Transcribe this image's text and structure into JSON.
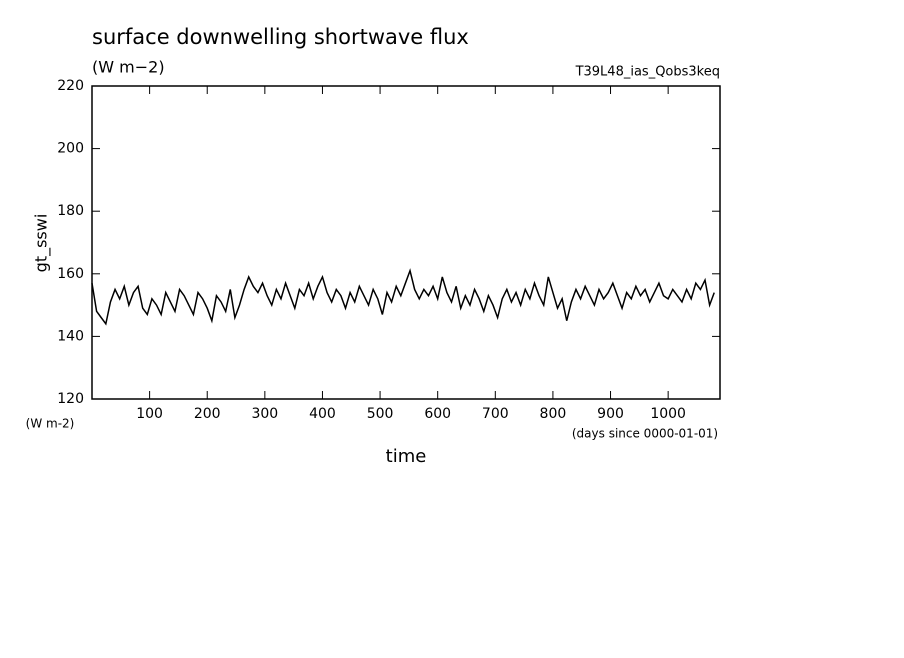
{
  "chart_data": {
    "type": "line",
    "title": "surface downwelling shortwave flux",
    "subtitle": "(W m−2)",
    "run_label": "T39L48_ias_Qobs3keq",
    "y_label": "gt_sswi",
    "y_unit": "(W m-2)",
    "x_label": "time",
    "x_unit": "(days since 0000-01-01)",
    "color": "#000000",
    "xlim": [
      0,
      1090
    ],
    "ylim": [
      120,
      220
    ],
    "xticks": [
      100,
      200,
      300,
      400,
      500,
      600,
      700,
      800,
      900,
      1000
    ],
    "yticks": [
      120,
      140,
      160,
      180,
      200,
      220
    ],
    "x": [
      0,
      8,
      16,
      24,
      32,
      40,
      48,
      56,
      64,
      72,
      80,
      88,
      96,
      104,
      112,
      120,
      128,
      136,
      144,
      152,
      160,
      168,
      176,
      184,
      192,
      200,
      208,
      216,
      224,
      232,
      240,
      248,
      256,
      264,
      272,
      280,
      288,
      296,
      304,
      312,
      320,
      328,
      336,
      344,
      352,
      360,
      368,
      376,
      384,
      392,
      400,
      408,
      416,
      424,
      432,
      440,
      448,
      456,
      464,
      472,
      480,
      488,
      496,
      504,
      512,
      520,
      528,
      536,
      544,
      552,
      560,
      568,
      576,
      584,
      592,
      600,
      608,
      616,
      624,
      632,
      640,
      648,
      656,
      664,
      672,
      680,
      688,
      696,
      704,
      712,
      720,
      728,
      736,
      744,
      752,
      760,
      768,
      776,
      784,
      792,
      800,
      808,
      816,
      824,
      832,
      840,
      848,
      856,
      864,
      872,
      880,
      888,
      896,
      904,
      912,
      920,
      928,
      936,
      944,
      952,
      960,
      968,
      976,
      984,
      992,
      1000,
      1008,
      1016,
      1024,
      1032,
      1040,
      1048,
      1056,
      1064,
      1072,
      1080
    ],
    "values": [
      157,
      148,
      146,
      144,
      151,
      155,
      152,
      156,
      150,
      154,
      156,
      149,
      147,
      152,
      150,
      147,
      154,
      151,
      148,
      155,
      153,
      150,
      147,
      154,
      152,
      149,
      145,
      153,
      151,
      148,
      155,
      146,
      150,
      155,
      159,
      156,
      154,
      157,
      153,
      150,
      155,
      152,
      157,
      153,
      149,
      155,
      153,
      157,
      152,
      156,
      159,
      154,
      151,
      155,
      153,
      149,
      154,
      151,
      156,
      153,
      150,
      155,
      152,
      147,
      154,
      151,
      156,
      153,
      157,
      161,
      155,
      152,
      155,
      153,
      156,
      152,
      159,
      154,
      151,
      156,
      149,
      153,
      150,
      155,
      152,
      148,
      153,
      150,
      146,
      152,
      155,
      151,
      154,
      150,
      155,
      152,
      157,
      153,
      150,
      159,
      154,
      149,
      152,
      145,
      151,
      155,
      152,
      156,
      153,
      150,
      155,
      152,
      154,
      157,
      153,
      149,
      154,
      152,
      156,
      153,
      155,
      151,
      154,
      157,
      153,
      152,
      155,
      153,
      151,
      155,
      152,
      157,
      155,
      158,
      150,
      154
    ]
  }
}
